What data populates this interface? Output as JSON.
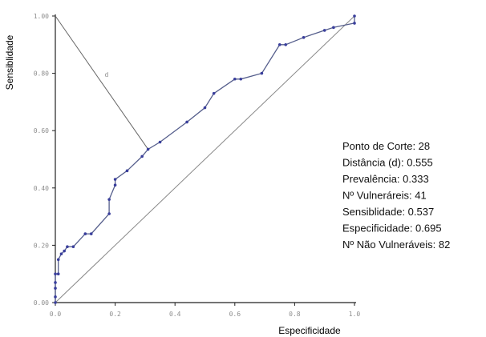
{
  "chart_data": {
    "type": "line",
    "title": "",
    "xlabel": "Especificidade",
    "ylabel": "Sensiblidade",
    "xlim": [
      0,
      1
    ],
    "ylim": [
      0,
      1
    ],
    "x_ticks": [
      "0.0",
      "0.2",
      "0.4",
      "0.6",
      "0.8",
      "1.0"
    ],
    "y_ticks": [
      "0.00",
      "0.20",
      "0.40",
      "0.60",
      "0.80",
      "1.00"
    ],
    "roc_points": [
      [
        0.0,
        0.0
      ],
      [
        0.0,
        0.02
      ],
      [
        0.0,
        0.05
      ],
      [
        0.0,
        0.07
      ],
      [
        0.0,
        0.1
      ],
      [
        0.01,
        0.1
      ],
      [
        0.01,
        0.15
      ],
      [
        0.02,
        0.17
      ],
      [
        0.03,
        0.18
      ],
      [
        0.04,
        0.195
      ],
      [
        0.06,
        0.195
      ],
      [
        0.1,
        0.24
      ],
      [
        0.12,
        0.24
      ],
      [
        0.18,
        0.31
      ],
      [
        0.18,
        0.36
      ],
      [
        0.2,
        0.41
      ],
      [
        0.2,
        0.43
      ],
      [
        0.24,
        0.46
      ],
      [
        0.29,
        0.51
      ],
      [
        0.31,
        0.535
      ],
      [
        0.35,
        0.56
      ],
      [
        0.44,
        0.63
      ],
      [
        0.5,
        0.68
      ],
      [
        0.53,
        0.73
      ],
      [
        0.6,
        0.78
      ],
      [
        0.62,
        0.78
      ],
      [
        0.69,
        0.8
      ],
      [
        0.75,
        0.9
      ],
      [
        0.77,
        0.9
      ],
      [
        0.83,
        0.925
      ],
      [
        0.9,
        0.95
      ],
      [
        0.93,
        0.96
      ],
      [
        1.0,
        0.975
      ],
      [
        1.0,
        1.0
      ]
    ],
    "reference_line": [
      [
        0.0,
        0.0
      ],
      [
        1.0,
        1.0
      ]
    ],
    "distance_segment": {
      "label": "d",
      "from": [
        0.0,
        1.0
      ],
      "to": [
        0.31,
        0.535
      ]
    },
    "grid": false,
    "colors": {
      "curve": "#555e8c",
      "points": "#3a3f9c",
      "axis": "#222222",
      "reference": "#888888"
    }
  },
  "stats": [
    "Ponto de Corte: 28",
    "Distância (d): 0.555",
    "Prevalência: 0.333",
    "Nº Vulneráreis: 41",
    "Sensiblidade: 0.537",
    "Especificidade: 0.695",
    "Nº Não Vulneráveis: 82"
  ]
}
